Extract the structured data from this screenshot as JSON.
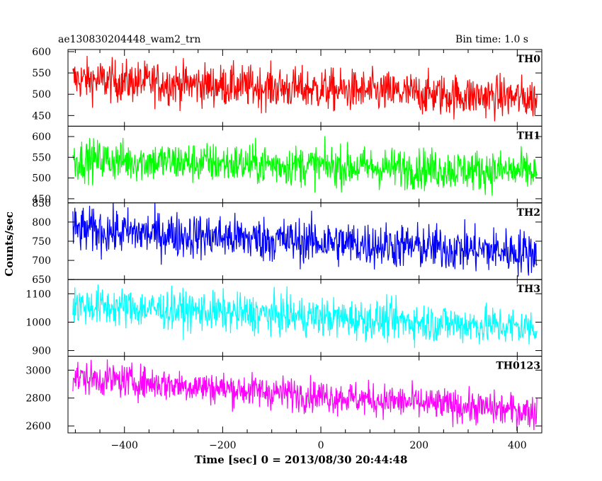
{
  "header": {
    "left_title": "ae130830204448_wam2_trn",
    "right_title": "Bin time: 1.0 s"
  },
  "axes": {
    "xlabel": "Time [sec] 0 = 2013/08/30 20:44:48",
    "ylabel": "Counts/sec"
  },
  "chart_data": {
    "type": "line",
    "x_range": [
      -515,
      450
    ],
    "x_ticks": [
      -400,
      -200,
      0,
      200,
      400
    ],
    "series_x_range": [
      -505,
      440
    ],
    "series": [
      {
        "name": "TH0",
        "color": "#ff0000",
        "ylim": [
          425,
          605
        ],
        "yticks": [
          450,
          500,
          550,
          600
        ],
        "trend": {
          "start": 535,
          "end": 490
        },
        "noise": 25
      },
      {
        "name": "TH1",
        "color": "#00ff00",
        "ylim": [
          440,
          625
        ],
        "yticks": [
          450,
          500,
          550,
          600
        ],
        "trend": {
          "start": 545,
          "end": 515
        },
        "noise": 25
      },
      {
        "name": "TH2",
        "color": "#0000ff",
        "ylim": [
          650,
          850
        ],
        "yticks": [
          650,
          700,
          750,
          800,
          850
        ],
        "trend": {
          "start": 780,
          "end": 720
        },
        "noise": 30
      },
      {
        "name": "TH3",
        "color": "#00ffff",
        "ylim": [
          880,
          1150
        ],
        "yticks": [
          900,
          1000,
          1100
        ],
        "trend": {
          "start": 1060,
          "end": 980
        },
        "noise": 35
      },
      {
        "name": "TH0123",
        "color": "#ff00ff",
        "ylim": [
          2550,
          3100
        ],
        "yticks": [
          2600,
          2800,
          3000
        ],
        "trend": {
          "start": 2950,
          "end": 2700
        },
        "noise": 60
      }
    ]
  }
}
